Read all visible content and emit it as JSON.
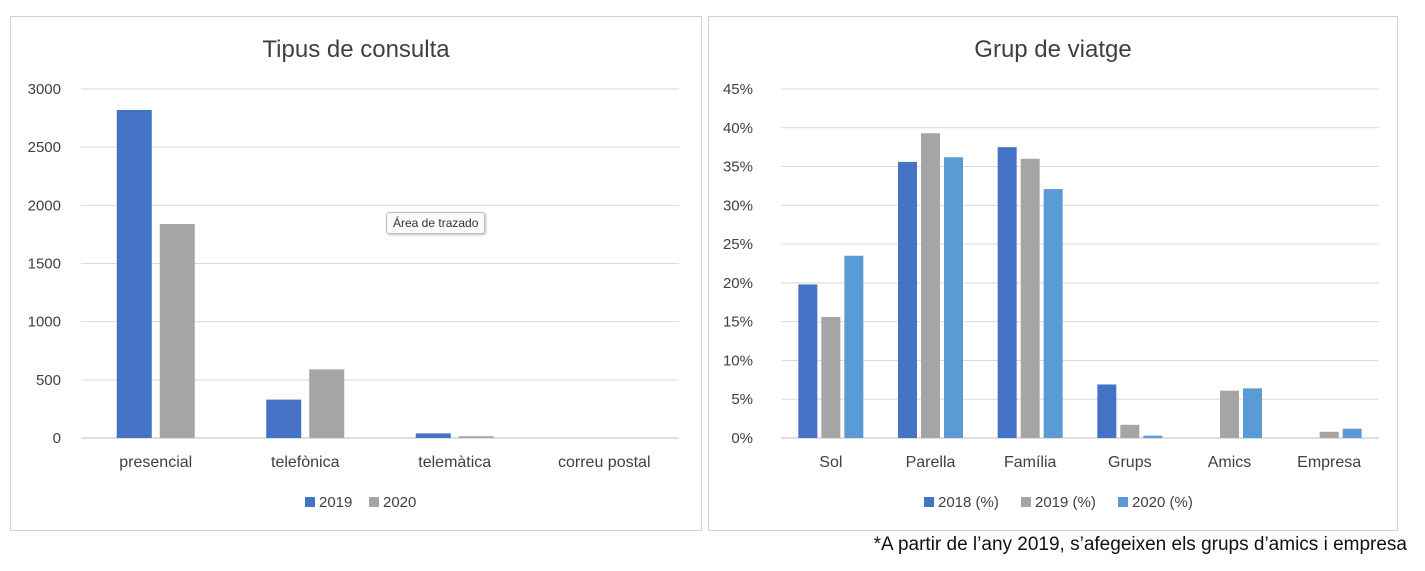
{
  "chart_data": [
    {
      "type": "bar",
      "title": "Tipus de consulta",
      "categories": [
        "presencial",
        "telefònica",
        "telemàtica",
        "correu postal"
      ],
      "series": [
        {
          "name": "2019",
          "color": "#4472C4",
          "values": [
            2820,
            330,
            40,
            0
          ]
        },
        {
          "name": "2020",
          "color": "#A5A5A5",
          "values": [
            1840,
            590,
            15,
            0
          ]
        }
      ],
      "yticks": [
        "0",
        "500",
        "1000",
        "1500",
        "2000",
        "2500",
        "3000"
      ],
      "ylim": [
        0,
        3000
      ],
      "grid": true,
      "legend": "bottom"
    },
    {
      "type": "bar",
      "title": "Grup de viatge",
      "categories": [
        "Sol",
        "Parella",
        "Família",
        "Grups",
        "Amics",
        "Empresa"
      ],
      "series": [
        {
          "name": "2018 (%)",
          "color": "#4472C4",
          "values": [
            19.8,
            35.6,
            37.5,
            6.9,
            0,
            0
          ]
        },
        {
          "name": "2019 (%)",
          "color": "#A5A5A5",
          "values": [
            15.6,
            39.3,
            36.0,
            1.7,
            6.1,
            0.8
          ]
        },
        {
          "name": "2020 (%)",
          "color": "#5B9BD5",
          "values": [
            23.5,
            36.2,
            32.1,
            0.3,
            6.4,
            1.2
          ]
        }
      ],
      "yticks": [
        "0%",
        "5%",
        "10%",
        "15%",
        "20%",
        "25%",
        "30%",
        "35%",
        "40%",
        "45%"
      ],
      "ylim": [
        0,
        45
      ],
      "grid": true,
      "legend": "bottom"
    }
  ],
  "tooltip": "Área de trazado",
  "footnote": "*A partir de l’any 2019, s’afegeixen els grups d’amics i empresa"
}
